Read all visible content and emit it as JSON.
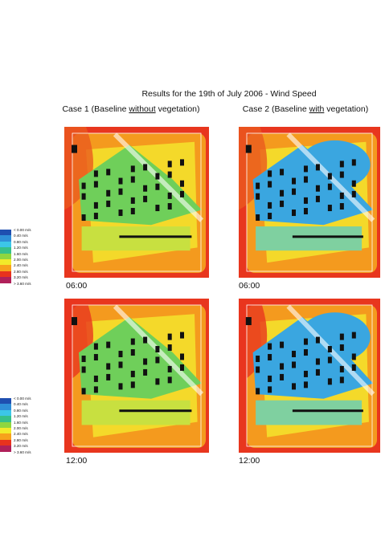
{
  "figure": {
    "title": "Results for the 19th of July 2006 - Wind Speed",
    "columns": [
      {
        "prefix": "Case 1 (Baseline",
        "emphasis": "without",
        "suffix": "vegetation)"
      },
      {
        "prefix": "Case 2 (Baseline",
        "emphasis": "with",
        "suffix": "vegetation)"
      }
    ],
    "times": [
      "06:00",
      "12:00"
    ],
    "legend": [
      "< 0.00 m/s",
      "0.40 m/s",
      "0.80 m/s",
      "1.20 m/s",
      "1.60 m/s",
      "2.00 m/s",
      "2.40 m/s",
      "2.80 m/s",
      "3.20 m/s",
      "> 3.60 m/s"
    ]
  }
}
